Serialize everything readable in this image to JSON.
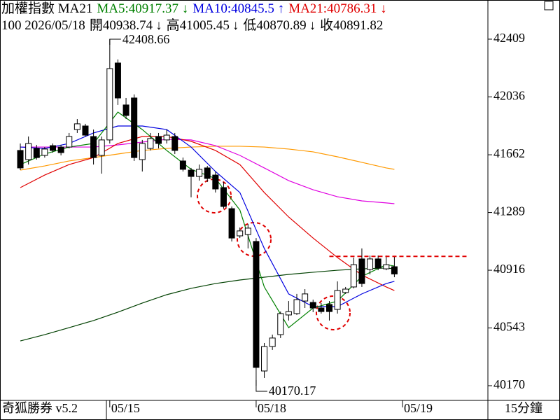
{
  "app_label": "奇狐勝券 v5.2",
  "period": "15分鐘",
  "chart_data": {
    "type": "candlestick",
    "header": [
      {
        "text": "加權指數 MA21",
        "color": "#000000"
      },
      {
        "text": "MA5:40917.37 ↓",
        "color": "#008000"
      },
      {
        "text": "MA10:40845.5 ↑",
        "color": "#0000e0"
      },
      {
        "text": "MA21:40786.31 ↓",
        "color": "#e00000"
      }
    ],
    "info": {
      "prefix": "100 2026/05/18",
      "labels": [
        "開",
        "高",
        "低",
        "收"
      ],
      "arrow": "↓"
    },
    "open": [
      41690,
      41631,
      41703,
      41658,
      41721,
      41712,
      41712,
      41825,
      41848,
      41780,
      41658,
      41758,
      42255,
      41984,
      42029,
      41631,
      41703,
      41780,
      41758,
      41780,
      41622,
      41563,
      41522,
      41577,
      41531,
      41450,
      41314,
      41138,
      41147,
      41102,
      40265,
      40423,
      40500,
      40627,
      40636,
      40717,
      40708,
      40672,
      40695,
      40663,
      40772,
      40808,
      40989,
      40921,
      40989,
      40925,
      40938.74
    ],
    "high": [
      41735,
      41780,
      41726,
      41712,
      41735,
      41726,
      41803,
      41893,
      41862,
      41825,
      41780,
      42408.66,
      42278,
      42029,
      42052,
      41758,
      41803,
      41803,
      41825,
      41803,
      41644,
      41577,
      41599,
      41590,
      41554,
      41486,
      41328,
      41192,
      41215,
      41124,
      40446,
      40500,
      40649,
      40717,
      40763,
      40794,
      40726,
      40704,
      40717,
      40844,
      40808,
      40998,
      41057,
      41011,
      41011,
      41011,
      41005.45
    ],
    "low": [
      41563,
      41599,
      41631,
      41644,
      41676,
      41658,
      41703,
      41803,
      41780,
      41599,
      41540,
      41735,
      41984,
      41893,
      41622,
      41554,
      41690,
      41703,
      41735,
      41667,
      41554,
      41387,
      41495,
      41486,
      41418,
      41314,
      41102,
      41124,
      41057,
      40170.17,
      40220,
      40401,
      40478,
      40591,
      40627,
      40672,
      40645,
      40636,
      40591,
      40636,
      40763,
      40799,
      40808,
      40889,
      40916,
      40916,
      40870.89
    ],
    "close": [
      41577,
      41735,
      41644,
      41699,
      41690,
      41676,
      41780,
      41862,
      41789,
      41644,
      41758,
      42219,
      42029,
      41916,
      41644,
      41735,
      41767,
      41735,
      41789,
      41690,
      41568,
      41522,
      41568,
      41509,
      41441,
      41328,
      41124,
      41170,
      41188,
      40288,
      40423,
      40478,
      40636,
      40649,
      40726,
      40763,
      40672,
      40649,
      40649,
      40785,
      40794,
      40952,
      40830,
      40989,
      40930,
      40952,
      40891.82
    ],
    "up_color": "#ffffff",
    "down_color": "#000000",
    "line_x": [
      0,
      3,
      6,
      9,
      12,
      15,
      18,
      21,
      24,
      27,
      30,
      33,
      36,
      39,
      42,
      45,
      46
    ],
    "lines": [
      {
        "color": "#ff9900",
        "values": [
          41563,
          41590,
          41622,
          41644,
          41667,
          41690,
          41703,
          41712,
          41717,
          41717,
          41712,
          41699,
          41681,
          41649,
          41613,
          41577,
          41568
        ]
      },
      {
        "color": "#e000e0",
        "values": [
          41712,
          41712,
          41712,
          41712,
          41726,
          41744,
          41762,
          41758,
          41721,
          41658,
          41577,
          41495,
          41436,
          41391,
          41364,
          41351,
          41346
        ]
      },
      {
        "color": "#004000",
        "values": [
          40459,
          40500,
          40545,
          40591,
          40645,
          40704,
          40758,
          40799,
          40830,
          40853,
          40871,
          40889,
          40903,
          40916,
          40925,
          40930,
          40925
        ]
      },
      {
        "color": "#e00000",
        "values": [
          41450,
          41531,
          41599,
          41644,
          41735,
          41780,
          41780,
          41749,
          41690,
          41599,
          41418,
          41260,
          41124,
          40998,
          40885,
          40808,
          40785
        ]
      },
      {
        "color": "#0000e0",
        "values": [
          41712,
          41703,
          41735,
          41803,
          41848,
          41848,
          41825,
          41712,
          41554,
          41418,
          41057,
          40763,
          40681,
          40681,
          40763,
          40830,
          40844
        ]
      },
      {
        "color": "#008000",
        "values": [
          41599,
          41667,
          41712,
          41735,
          41938,
          41825,
          41690,
          41568,
          41509,
          41305,
          40808,
          40545,
          40672,
          40717,
          40876,
          40952,
          40943
        ]
      }
    ],
    "hline": {
      "value": 41005.45,
      "x": [
        38,
        55
      ],
      "color": "#e00000"
    },
    "xlim": [
      -2.5,
      57.5
    ],
    "xticks": [
      {
        "value": 11,
        "label": "05/15"
      },
      {
        "value": 29,
        "label": "05/18"
      },
      {
        "value": 47,
        "label": "05/19"
      }
    ],
    "ylim": [
      40084,
      42445
    ],
    "yticks": [
      42409,
      42036,
      41662,
      41289,
      40916,
      40543,
      40170
    ]
  }
}
